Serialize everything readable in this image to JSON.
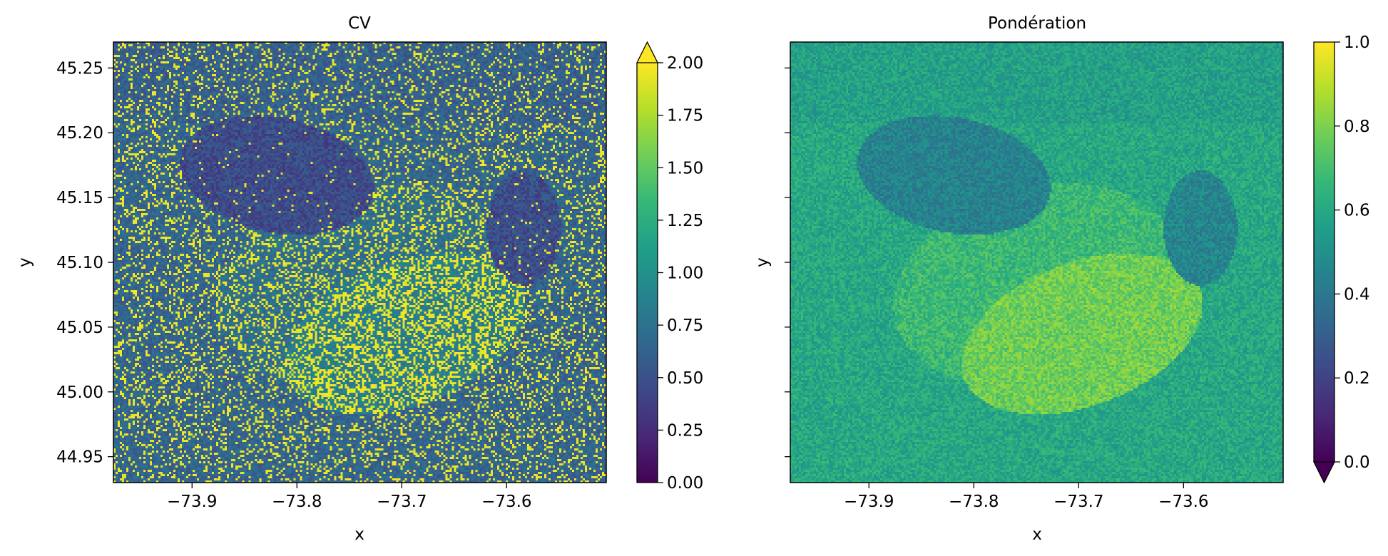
{
  "figure": {
    "background": "#ffffff"
  },
  "chart_data": [
    {
      "type": "heatmap",
      "title": "CV",
      "xlabel": "x",
      "ylabel": "y",
      "xlim": [
        -73.975,
        -73.505
      ],
      "ylim": [
        44.93,
        45.27
      ],
      "xticks": [
        -73.9,
        -73.8,
        -73.7,
        -73.6
      ],
      "xtick_labels": [
        "−73.9",
        "−73.8",
        "−73.7",
        "−73.6"
      ],
      "yticks": [
        44.95,
        45.0,
        45.05,
        45.1,
        45.15,
        45.2,
        45.25
      ],
      "ytick_labels": [
        "44.95",
        "45.00",
        "45.05",
        "45.10",
        "45.15",
        "45.20",
        "45.25"
      ],
      "colormap": "viridis",
      "colorbar": {
        "range": [
          0,
          2
        ],
        "extend": "max",
        "ticks": [
          0,
          0.25,
          0.5,
          0.75,
          1.0,
          1.25,
          1.5,
          1.75,
          2.0
        ],
        "tick_labels": [
          "0.00",
          "0.25",
          "0.50",
          "0.75",
          "1.00",
          "1.25",
          "1.50",
          "1.75",
          "2.00"
        ]
      }
    },
    {
      "type": "heatmap",
      "title": "Pondération",
      "xlabel": "x",
      "ylabel": "y",
      "xlim": [
        -73.975,
        -73.505
      ],
      "ylim": [
        44.93,
        45.27
      ],
      "xticks": [
        -73.9,
        -73.8,
        -73.7,
        -73.6
      ],
      "xtick_labels": [
        "−73.9",
        "−73.8",
        "−73.7",
        "−73.6"
      ],
      "yticks": [
        44.95,
        45.0,
        45.05,
        45.1,
        45.15,
        45.2,
        45.25
      ],
      "ytick_labels": [],
      "colormap": "viridis",
      "colorbar": {
        "range": [
          0,
          1
        ],
        "extend": "min",
        "ticks": [
          0,
          0.2,
          0.4,
          0.6,
          0.8,
          1.0
        ],
        "tick_labels": [
          "0.0",
          "0.2",
          "0.4",
          "0.6",
          "0.8",
          "1.0"
        ]
      }
    }
  ],
  "colors": {
    "viridis": [
      "#440154",
      "#482878",
      "#3e4989",
      "#31688e",
      "#26828e",
      "#1f9e89",
      "#35b779",
      "#6ece58",
      "#b5de2b",
      "#fde725"
    ]
  }
}
